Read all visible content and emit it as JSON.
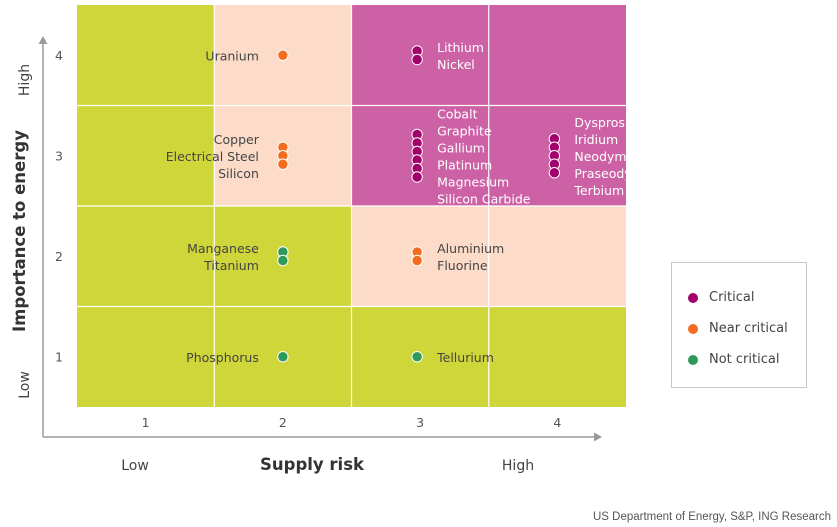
{
  "chart_data": {
    "type": "scatter",
    "xlabel": "Supply risk",
    "ylabel": "Importance to energy",
    "x_low_label": "Low",
    "x_high_label": "High",
    "y_low_label": "Low",
    "y_high_label": "High",
    "xlim": [
      0.5,
      4.5
    ],
    "ylim": [
      0.5,
      4.5
    ],
    "x_ticks": [
      "1",
      "2",
      "3",
      "4"
    ],
    "y_ticks": [
      "1",
      "2",
      "3",
      "4"
    ],
    "grid": true,
    "legend_position": "right",
    "categories": [
      {
        "key": "critical",
        "name": "Critical",
        "color": "#a2006d"
      },
      {
        "key": "near",
        "name": "Near critical",
        "color": "#f26d1f"
      },
      {
        "key": "not",
        "name": "Not critical",
        "color": "#2e9a5a"
      }
    ],
    "points": [
      {
        "label": "Uranium",
        "x": 2,
        "y": 4,
        "category": "near"
      },
      {
        "label": "Lithium",
        "x": 3,
        "y": 4,
        "category": "critical"
      },
      {
        "label": "Nickel",
        "x": 3,
        "y": 4,
        "category": "critical"
      },
      {
        "label": "Copper",
        "x": 2,
        "y": 3,
        "category": "near"
      },
      {
        "label": "Electrical Steel",
        "x": 2,
        "y": 3,
        "category": "near"
      },
      {
        "label": "Silicon",
        "x": 2,
        "y": 3,
        "category": "near"
      },
      {
        "label": "Cobalt",
        "x": 3,
        "y": 3,
        "category": "critical"
      },
      {
        "label": "Graphite",
        "x": 3,
        "y": 3,
        "category": "critical"
      },
      {
        "label": "Gallium",
        "x": 3,
        "y": 3,
        "category": "critical"
      },
      {
        "label": "Platinum",
        "x": 3,
        "y": 3,
        "category": "critical"
      },
      {
        "label": "Magnesium",
        "x": 3,
        "y": 3,
        "category": "critical"
      },
      {
        "label": "Silicon Carbide",
        "x": 3,
        "y": 3,
        "category": "critical"
      },
      {
        "label": "Dysprosium",
        "x": 4,
        "y": 3,
        "category": "critical"
      },
      {
        "label": "Iridium",
        "x": 4,
        "y": 3,
        "category": "critical"
      },
      {
        "label": "Neodymium",
        "x": 4,
        "y": 3,
        "category": "critical"
      },
      {
        "label": "Praseodymium",
        "x": 4,
        "y": 3,
        "category": "critical"
      },
      {
        "label": "Terbium",
        "x": 4,
        "y": 3,
        "category": "critical"
      },
      {
        "label": "Manganese",
        "x": 2,
        "y": 2,
        "category": "not"
      },
      {
        "label": "Titanium",
        "x": 2,
        "y": 2,
        "category": "not"
      },
      {
        "label": "Aluminium",
        "x": 3,
        "y": 2,
        "category": "near"
      },
      {
        "label": "Fluorine",
        "x": 3,
        "y": 2,
        "category": "near"
      },
      {
        "label": "Phosphorus",
        "x": 2,
        "y": 1,
        "category": "not"
      },
      {
        "label": "Tellurium",
        "x": 3,
        "y": 1,
        "category": "not"
      }
    ],
    "zone_colors": {
      "not": "#cfd63a",
      "near": "#fcdcc9",
      "critical": "#cd61a5"
    }
  },
  "legend": {
    "items": [
      {
        "label": "Critical",
        "color": "#a2006d"
      },
      {
        "label": "Near critical",
        "color": "#f26d1f"
      },
      {
        "label": "Not critical",
        "color": "#2e9a5a"
      }
    ]
  },
  "source": "US Department of Energy, S&P, ING Research"
}
